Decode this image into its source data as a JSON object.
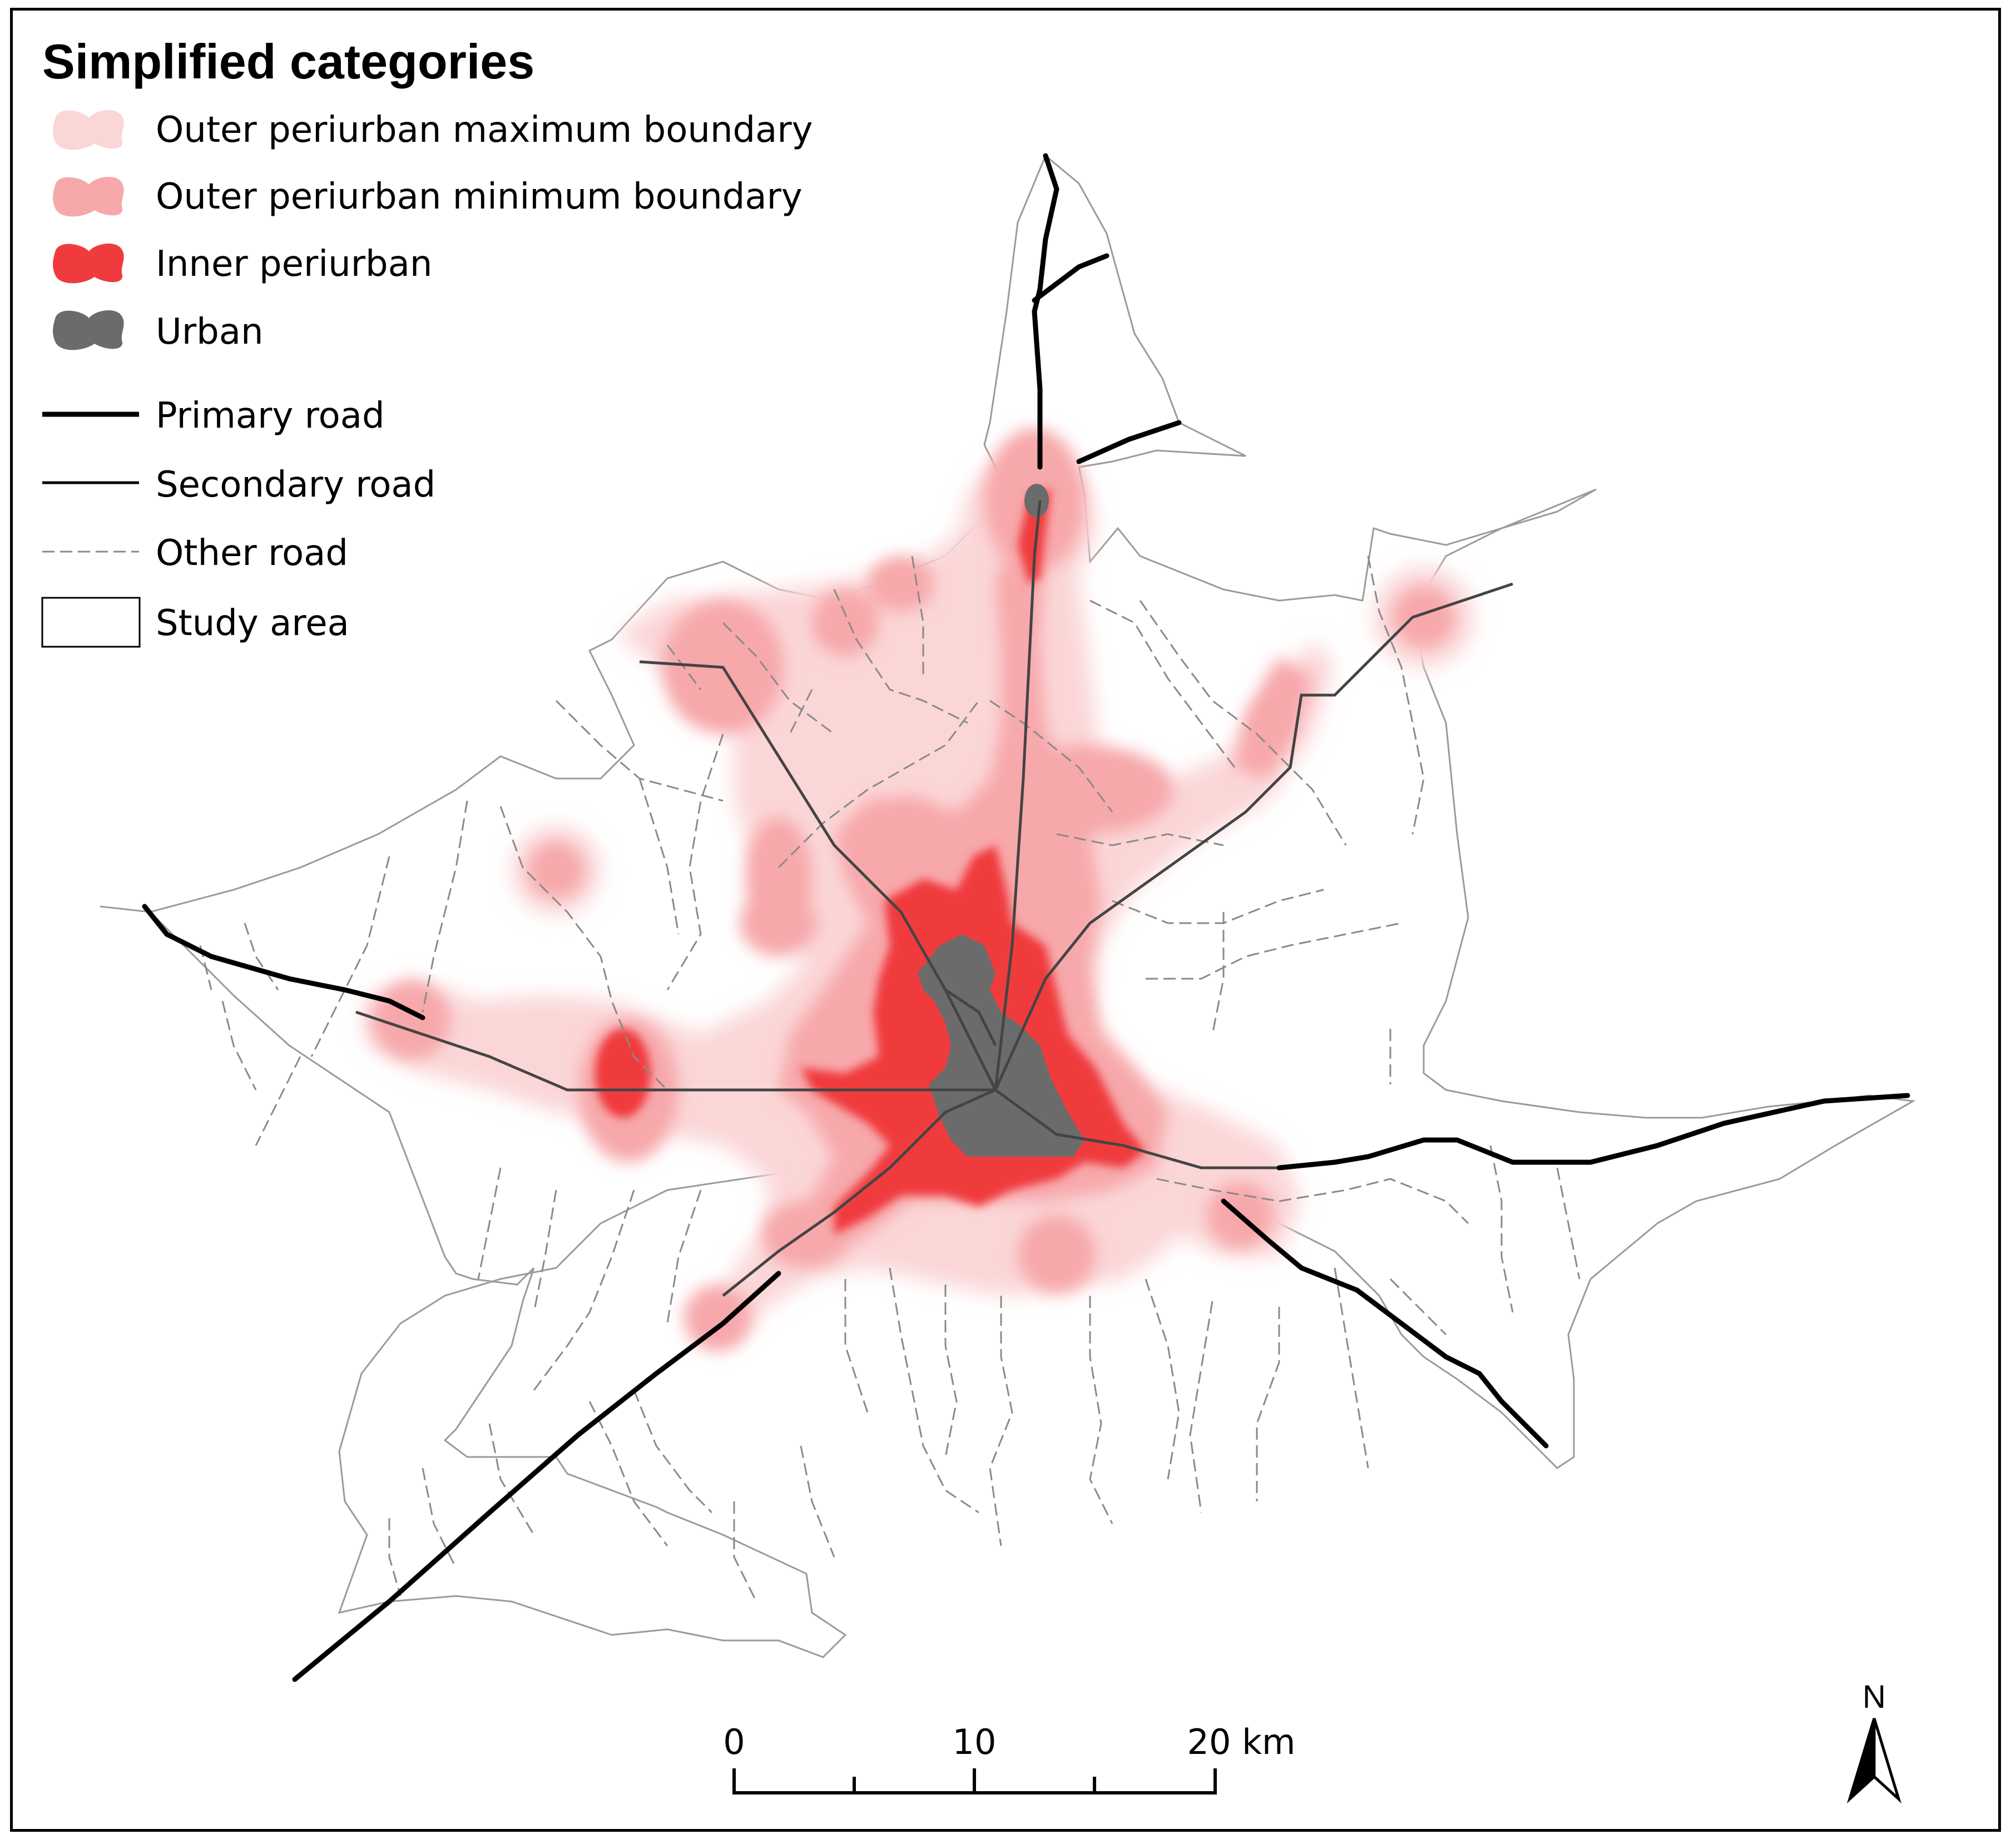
{
  "legend": {
    "title": "Simplified categories",
    "items": [
      {
        "key": "outer_max",
        "label": "Outer periurban maximum boundary",
        "color": "#fbd6d7",
        "symbol": "area"
      },
      {
        "key": "outer_min",
        "label": "Outer periurban minimum boundary",
        "color": "#f7a8ab",
        "symbol": "area"
      },
      {
        "key": "inner",
        "label": "Inner periurban",
        "color": "#f03b3e",
        "symbol": "area"
      },
      {
        "key": "urban",
        "label": "Urban",
        "color": "#6b6b6b",
        "symbol": "area"
      },
      {
        "key": "primary",
        "label": "Primary road",
        "color": "#000000",
        "symbol": "thick-line"
      },
      {
        "key": "secondary",
        "label": "Secondary road",
        "color": "#000000",
        "symbol": "line"
      },
      {
        "key": "other",
        "label": "Other road",
        "color": "#888888",
        "symbol": "dashed-line"
      },
      {
        "key": "study",
        "label": "Study area",
        "color": "#ffffff",
        "symbol": "box"
      }
    ]
  },
  "scale_bar": {
    "labels": [
      "0",
      "10",
      "20 km"
    ],
    "units": "km",
    "max_value": 20
  },
  "north_arrow": {
    "label": "N"
  },
  "colors": {
    "frame": "#000000",
    "study_area_outline": "#9a9a9a",
    "other_road": "#8a8a8a"
  }
}
